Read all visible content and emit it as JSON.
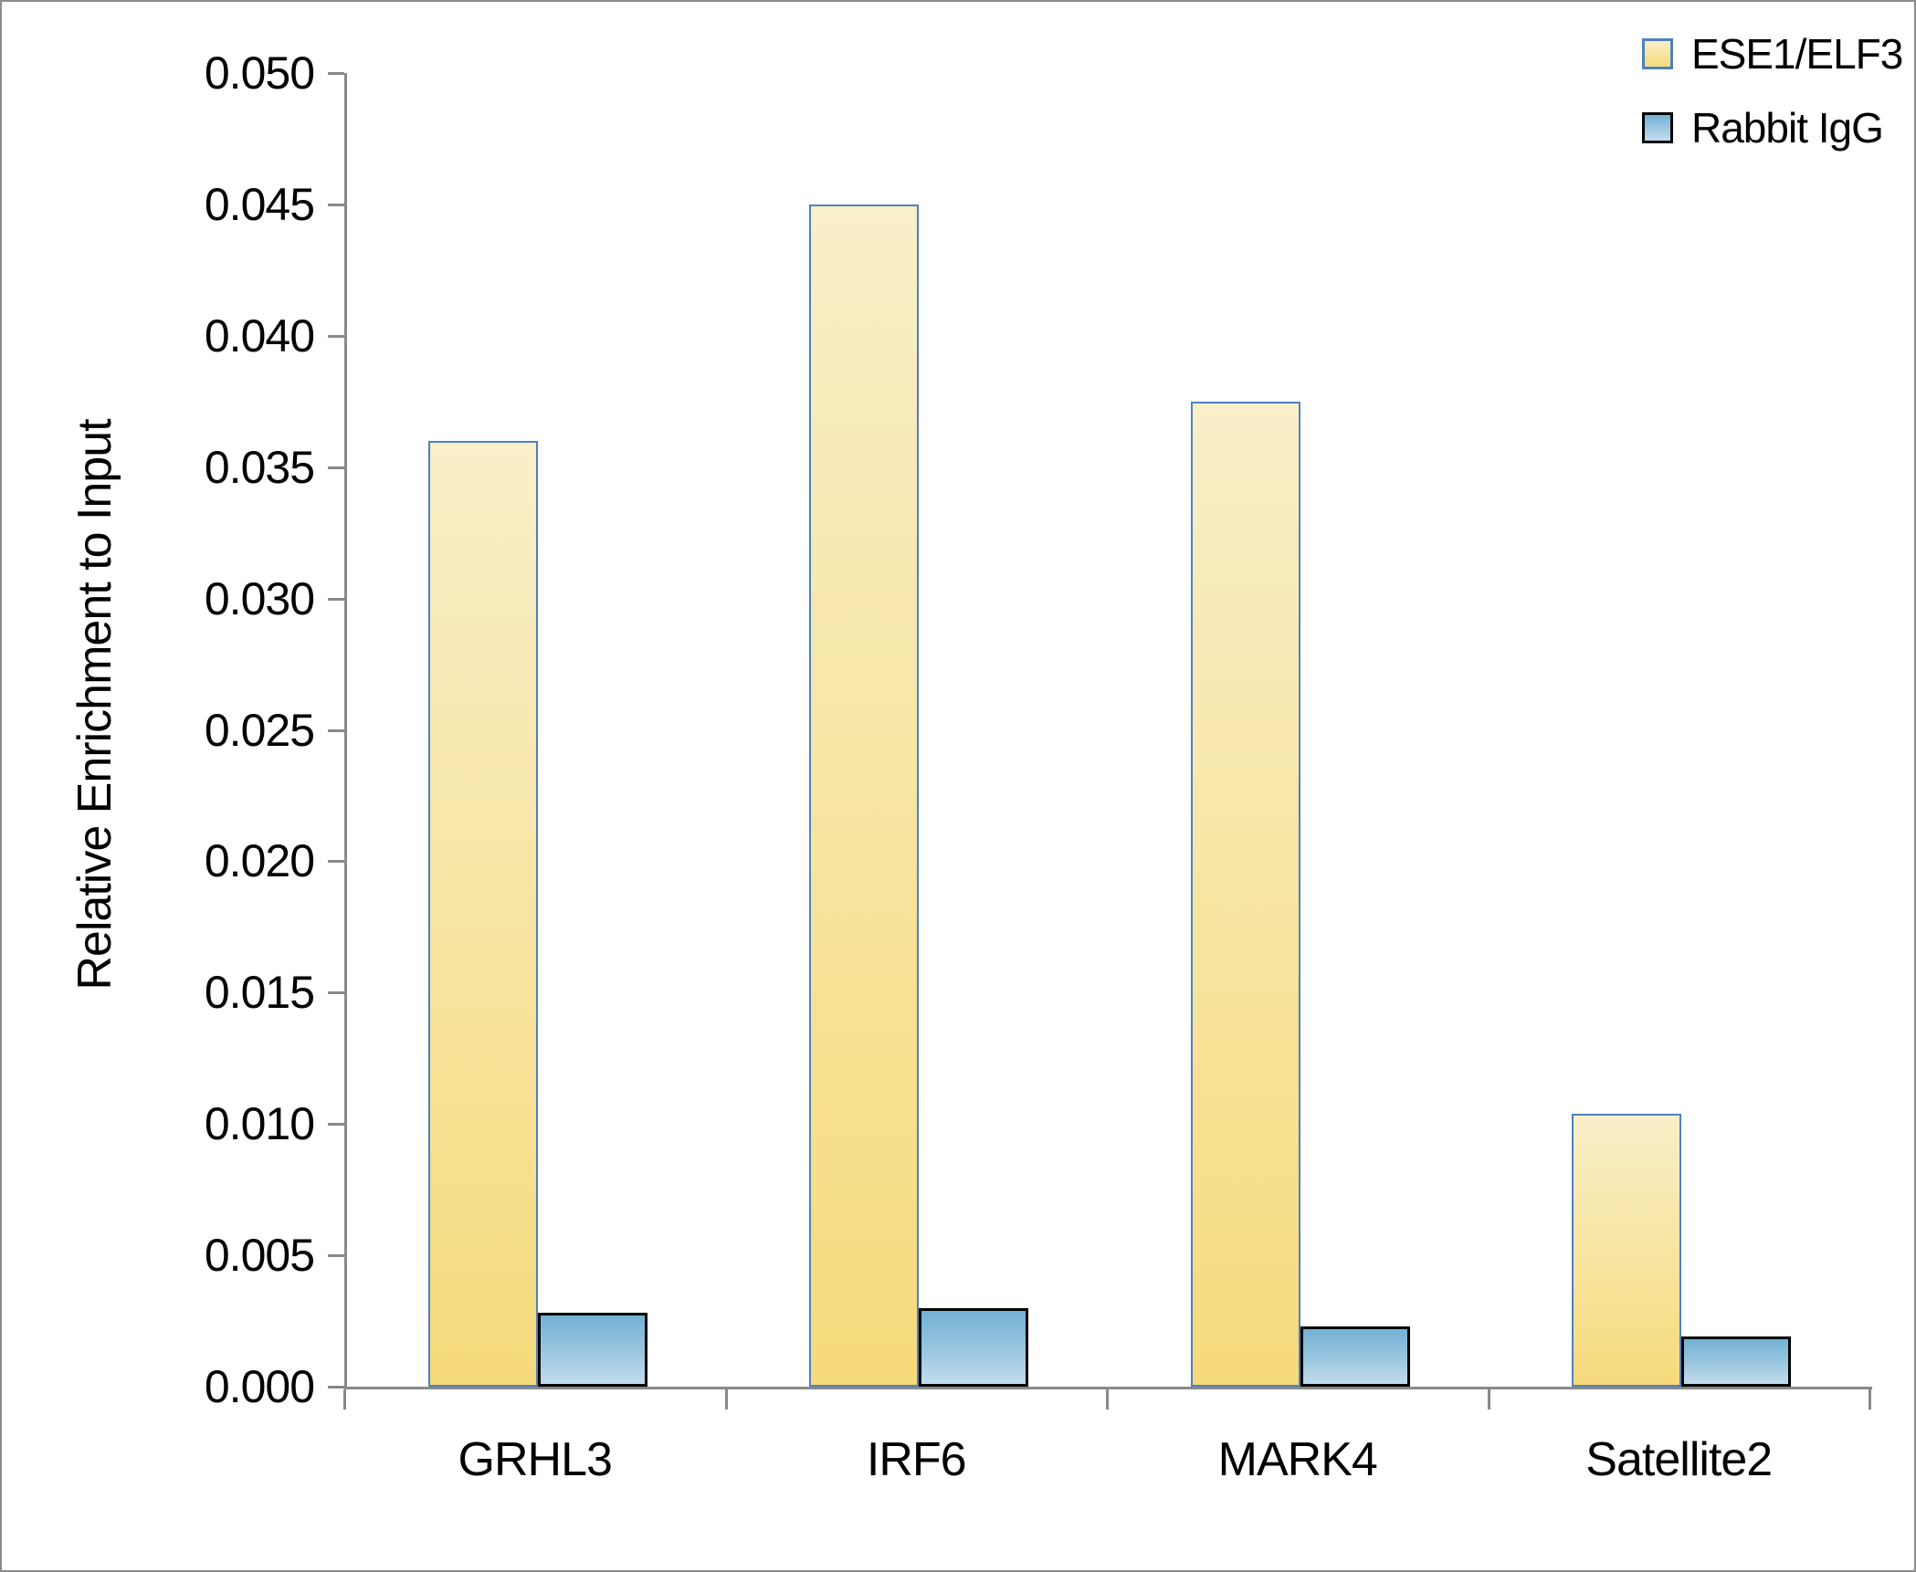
{
  "chart_data": {
    "type": "bar",
    "title": "",
    "ylabel": "Relative Enrichment to Input",
    "xlabel": "",
    "categories": [
      "GRHL3",
      "IRF6",
      "MARK4",
      "Satellite2"
    ],
    "series": [
      {
        "name": "ESE1/ELF3",
        "values": [
          0.036,
          0.045,
          0.0375,
          0.0104
        ],
        "fill_top": "#f9efc9",
        "fill_bottom": "#f7da7c",
        "border_color": "#4f81bd"
      },
      {
        "name": "Rabbit IgG",
        "values": [
          0.0028,
          0.003,
          0.0023,
          0.0019
        ],
        "fill_top": "#74b1d5",
        "fill_bottom": "#c3dcec",
        "border_color": "#000000"
      }
    ],
    "ylim": [
      0.0,
      0.05
    ],
    "ytick_step": 0.005,
    "ytick_labels": [
      "0.000",
      "0.005",
      "0.010",
      "0.015",
      "0.020",
      "0.025",
      "0.030",
      "0.035",
      "0.040",
      "0.045",
      "0.050"
    ],
    "grid": false,
    "legend_position": "top-right",
    "axis_color": "#898989",
    "text_color": "#000000"
  }
}
